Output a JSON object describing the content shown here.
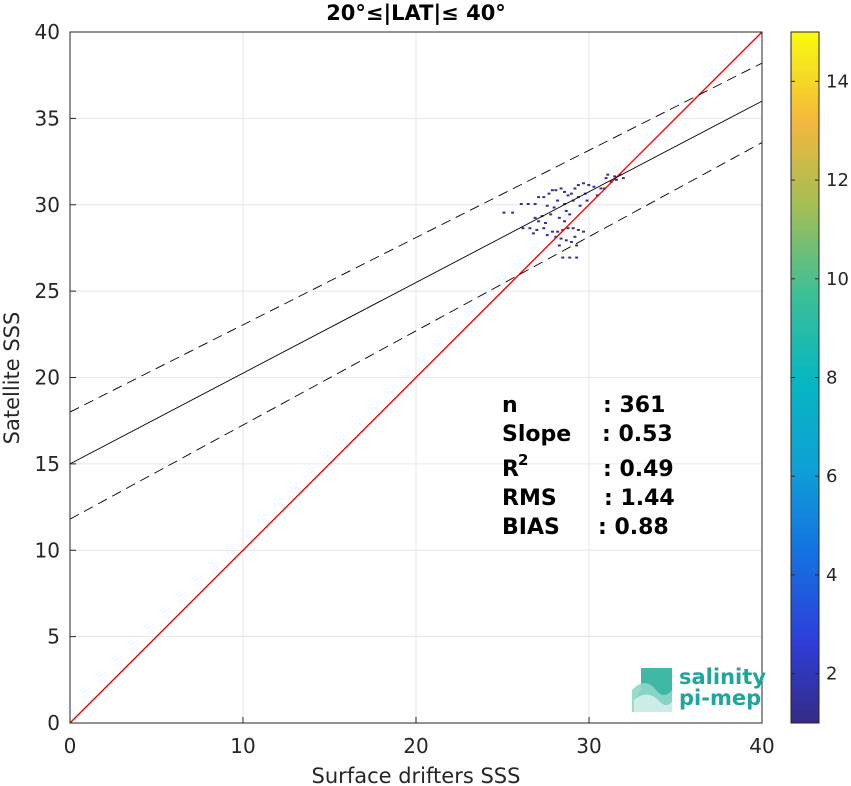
{
  "chart_data": {
    "type": "heatmap",
    "title": "20°≤|LAT|≤ 40°",
    "xlabel": "Surface drifters SSS",
    "ylabel": "Satellite SSS",
    "xlim": [
      0,
      40
    ],
    "ylim": [
      0,
      40
    ],
    "xticks": [
      "0",
      "10",
      "20",
      "30",
      "40"
    ],
    "yticks": [
      "0",
      "5",
      "10",
      "15",
      "20",
      "25",
      "30",
      "35",
      "40"
    ],
    "grid": true,
    "colorbar": {
      "range": [
        1,
        15
      ],
      "ticks": [
        "2",
        "4",
        "6",
        "8",
        "10",
        "12",
        "14"
      ],
      "colormap": "parula"
    },
    "lines": [
      {
        "name": "1:1",
        "color": "#ff0000",
        "style": "solid",
        "points": [
          [
            0,
            0
          ],
          [
            40,
            40
          ]
        ]
      },
      {
        "name": "fit",
        "color": "#000000",
        "style": "solid",
        "points": [
          [
            0,
            15.0
          ],
          [
            40,
            36.0
          ]
        ]
      },
      {
        "name": "fit+",
        "color": "#000000",
        "style": "dashed",
        "points": [
          [
            0,
            18.0
          ],
          [
            40,
            38.2
          ]
        ]
      },
      {
        "name": "fit-",
        "color": "#000000",
        "style": "dashed",
        "points": [
          [
            0,
            11.8
          ],
          [
            40,
            33.6
          ]
        ]
      }
    ],
    "cells": [
      [
        25.5,
        29.5
      ],
      [
        26.0,
        30.0
      ],
      [
        26.4,
        30.0
      ],
      [
        26.8,
        30.0
      ],
      [
        27.0,
        30.4
      ],
      [
        27.3,
        30.4
      ],
      [
        27.6,
        30.6
      ],
      [
        27.8,
        30.8
      ],
      [
        28.0,
        30.8
      ],
      [
        28.3,
        30.9
      ],
      [
        28.5,
        30.7
      ],
      [
        28.7,
        30.5
      ],
      [
        28.9,
        30.6
      ],
      [
        29.1,
        30.9
      ],
      [
        29.3,
        31.1
      ],
      [
        29.6,
        31.2
      ],
      [
        29.9,
        31.1
      ],
      [
        30.2,
        31.0
      ],
      [
        29.0,
        30.2
      ],
      [
        29.3,
        30.4
      ],
      [
        28.5,
        30.0
      ],
      [
        28.1,
        30.2
      ],
      [
        27.5,
        29.9
      ],
      [
        27.9,
        29.8
      ],
      [
        28.6,
        29.6
      ],
      [
        27.2,
        29.3
      ],
      [
        27.7,
        29.4
      ],
      [
        28.2,
        29.2
      ],
      [
        28.8,
        29.4
      ],
      [
        29.4,
        29.9
      ],
      [
        29.7,
        30.6
      ],
      [
        30.4,
        30.5
      ],
      [
        30.8,
        30.9
      ],
      [
        31.2,
        31.3
      ],
      [
        31.0,
        31.7
      ],
      [
        31.4,
        31.6
      ],
      [
        31.7,
        31.7
      ],
      [
        31.9,
        31.5
      ],
      [
        30.9,
        31.5
      ],
      [
        31.5,
        31.4
      ],
      [
        27.0,
        29.0
      ],
      [
        27.4,
        28.9
      ],
      [
        26.1,
        28.6
      ],
      [
        26.5,
        28.6
      ],
      [
        26.9,
        28.5
      ],
      [
        27.3,
        28.6
      ],
      [
        27.8,
        28.4
      ],
      [
        28.1,
        28.4
      ],
      [
        28.4,
        28.5
      ],
      [
        28.7,
        28.6
      ],
      [
        29.0,
        28.6
      ],
      [
        29.3,
        28.5
      ],
      [
        29.6,
        28.4
      ],
      [
        27.5,
        28.2
      ],
      [
        28.0,
        28.1
      ],
      [
        28.3,
        28.0
      ],
      [
        28.6,
        27.9
      ],
      [
        29.1,
        28.1
      ],
      [
        28.2,
        27.6
      ],
      [
        28.9,
        27.8
      ],
      [
        29.2,
        27.6
      ],
      [
        28.4,
        26.9
      ],
      [
        28.8,
        26.9
      ],
      [
        29.2,
        26.9
      ],
      [
        26.7,
        28.3
      ],
      [
        25.0,
        29.5
      ],
      [
        26.8,
        29.2
      ],
      [
        28.5,
        29.0
      ],
      [
        29.8,
        30.2
      ],
      [
        30.6,
        30.9
      ]
    ],
    "annotations": {
      "n": {
        "label": "n",
        "value": ": 361"
      },
      "slope": {
        "label": "Slope",
        "value": ": 0.53"
      },
      "r2": {
        "label": "R",
        "sup": "2",
        "value": ": 0.49"
      },
      "rms": {
        "label": "RMS",
        "value": ": 1.44"
      },
      "bias": {
        "label": "BIAS",
        "value": ": 0.88"
      }
    }
  },
  "logo": {
    "line1": "salinity",
    "line2": "pi-mep"
  }
}
